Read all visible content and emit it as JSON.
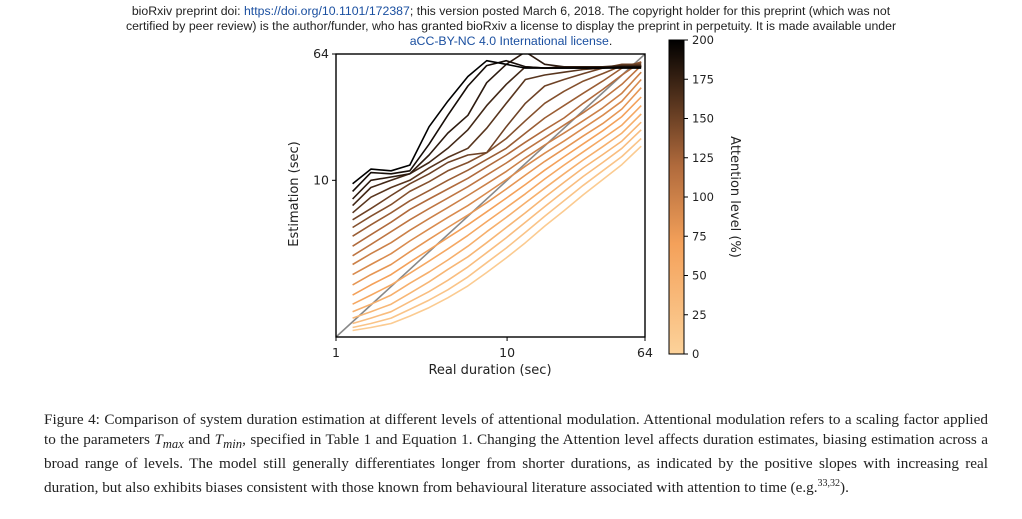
{
  "header": {
    "line1_prefix": "bioRxiv preprint doi: ",
    "doi_link": "https://doi.org/10.1101/172387",
    "line1_suffix": "; this version posted March 6, 2018. The copyright holder for this preprint (which was not",
    "line2": "certified by peer review) is the author/funder, who has granted bioRxiv a license to display the preprint in perpetuity. It is made available under",
    "license_link": "aCC-BY-NC 4.0 International license",
    "license_period": "."
  },
  "chart_data": {
    "type": "line",
    "xlabel": "Real duration (sec)",
    "ylabel": "Estimation (sec)",
    "x_scale": "log",
    "y_scale": "log",
    "xlim": [
      1,
      64
    ],
    "ylim": [
      1,
      64
    ],
    "x_ticks": [
      "1",
      "10",
      "64"
    ],
    "y_ticks": [
      "64",
      "10"
    ],
    "diagonal_reference": true,
    "grid": false,
    "colorbar": {
      "label": "Attention level (%)",
      "min": 0,
      "max": 200,
      "ticks": [
        "200",
        "175",
        "150",
        "125",
        "100",
        "75",
        "50",
        "25",
        "0"
      ]
    },
    "x": [
      1.25,
      1.6,
      2.1,
      2.7,
      3.5,
      4.5,
      5.9,
      7.6,
      9.9,
      12.8,
      16.6,
      21.5,
      27.9,
      36.2,
      46.9,
      60.8
    ],
    "series": [
      {
        "attention": 200,
        "values": [
          9.5,
          11.8,
          11.5,
          12.5,
          22,
          32,
          46,
          58,
          55,
          52,
          52,
          52,
          52,
          52,
          52,
          52
        ]
      },
      {
        "attention": 190,
        "values": [
          8.5,
          11.2,
          11,
          11.5,
          17,
          26,
          40,
          54,
          58,
          53,
          52,
          52,
          52,
          52,
          53,
          53
        ]
      },
      {
        "attention": 180,
        "values": [
          7.6,
          10,
          10.5,
          11,
          14.5,
          20,
          26,
          42,
          55,
          66,
          55,
          53,
          53,
          53,
          53,
          53
        ]
      },
      {
        "attention": 170,
        "values": [
          6.9,
          9,
          10,
          11,
          13,
          16,
          21,
          30,
          41,
          53,
          52,
          53,
          53,
          53,
          54,
          54
        ]
      },
      {
        "attention": 160,
        "values": [
          6.2,
          7.8,
          9,
          10,
          12,
          14,
          16,
          21.5,
          31,
          44,
          47,
          49,
          51,
          52,
          54,
          54
        ]
      },
      {
        "attention": 150,
        "values": [
          5.6,
          6.6,
          8,
          9.5,
          11,
          13,
          14.5,
          15,
          22,
          31,
          40,
          44,
          48,
          52,
          55,
          55
        ]
      },
      {
        "attention": 140,
        "values": [
          5.0,
          5.9,
          7,
          8.5,
          9.8,
          11.5,
          13,
          15,
          18.5,
          24,
          31,
          37,
          43,
          48,
          54,
          56
        ]
      },
      {
        "attention": 130,
        "values": [
          4.4,
          5.2,
          6.2,
          7.4,
          8.6,
          10,
          11.6,
          13.6,
          16,
          20,
          25,
          30,
          36,
          43,
          52,
          57
        ]
      },
      {
        "attention": 120,
        "values": [
          3.8,
          4.5,
          5.4,
          6.5,
          7.6,
          8.8,
          10.3,
          12.2,
          14.5,
          17.5,
          21,
          25,
          31,
          38,
          47,
          57
        ]
      },
      {
        "attention": 110,
        "values": [
          3.3,
          3.9,
          4.7,
          5.6,
          6.6,
          7.7,
          9.1,
          10.8,
          12.9,
          15.6,
          18.7,
          22.5,
          27,
          33,
          41,
          54
        ]
      },
      {
        "attention": 100,
        "values": [
          2.9,
          3.4,
          4.0,
          4.8,
          5.7,
          6.7,
          8.0,
          9.5,
          11.4,
          13.9,
          16.8,
          20,
          24,
          29,
          36,
          49
        ]
      },
      {
        "attention": 90,
        "values": [
          2.5,
          2.9,
          3.4,
          4.1,
          4.9,
          5.8,
          6.9,
          8.3,
          10.1,
          12.3,
          14.9,
          17.8,
          21.5,
          26,
          32,
          44
        ]
      },
      {
        "attention": 80,
        "values": [
          2.15,
          2.5,
          2.9,
          3.5,
          4.2,
          5.0,
          6.0,
          7.2,
          8.8,
          10.8,
          13.2,
          15.9,
          19.2,
          23,
          28.5,
          39
        ]
      },
      {
        "attention": 70,
        "values": [
          1.85,
          2.15,
          2.5,
          3.0,
          3.6,
          4.3,
          5.2,
          6.3,
          7.7,
          9.4,
          11.6,
          14.1,
          17.1,
          20.7,
          25.5,
          34
        ]
      },
      {
        "attention": 60,
        "values": [
          1.62,
          1.85,
          2.15,
          2.55,
          3.05,
          3.65,
          4.45,
          5.45,
          6.7,
          8.2,
          10.2,
          12.5,
          15.2,
          18.5,
          22.5,
          30
        ]
      },
      {
        "attention": 50,
        "values": [
          1.45,
          1.62,
          1.85,
          2.2,
          2.6,
          3.1,
          3.8,
          4.7,
          5.8,
          7.2,
          8.9,
          11,
          13.5,
          16.4,
          20,
          26.5
        ]
      },
      {
        "attention": 40,
        "values": [
          1.32,
          1.45,
          1.62,
          1.9,
          2.25,
          2.7,
          3.25,
          4.0,
          5.0,
          6.2,
          7.8,
          9.7,
          12,
          14.6,
          17.8,
          23.5
        ]
      },
      {
        "attention": 30,
        "values": [
          1.22,
          1.32,
          1.45,
          1.68,
          1.95,
          2.3,
          2.8,
          3.45,
          4.3,
          5.4,
          6.8,
          8.5,
          10.6,
          13,
          16,
          21
        ]
      },
      {
        "attention": 20,
        "values": [
          1.15,
          1.22,
          1.32,
          1.5,
          1.72,
          2.0,
          2.42,
          2.98,
          3.7,
          4.65,
          5.9,
          7.4,
          9.3,
          11.5,
          14.2,
          18.5
        ]
      },
      {
        "attention": 10,
        "values": [
          1.1,
          1.15,
          1.22,
          1.36,
          1.54,
          1.78,
          2.12,
          2.58,
          3.2,
          4.0,
          5.1,
          6.4,
          8.1,
          10.1,
          12.6,
          16.5
        ]
      }
    ]
  },
  "caption": {
    "label": "Figure 4:",
    "text_1": " Comparison of system duration estimation at different levels of attentional modulation. Attentional modulation refers to a scaling factor applied to the parameters ",
    "tmax_base": "T",
    "tmax_sub": "max",
    "text_2": " and ",
    "tmin_base": "T",
    "tmin_sub": "min",
    "text_3": ", specified in Table  1 and Equation 1. Changing the Attention level affects duration estimates, biasing estimation across a broad range of levels. The model still generally differentiates longer from shorter durations, as indicated by the positive slopes with increasing real duration, but also exhibits biases consistent with those known from behavioural literature associated with attention to time (e.g.",
    "refs": "33,32",
    "text_4": ")."
  }
}
